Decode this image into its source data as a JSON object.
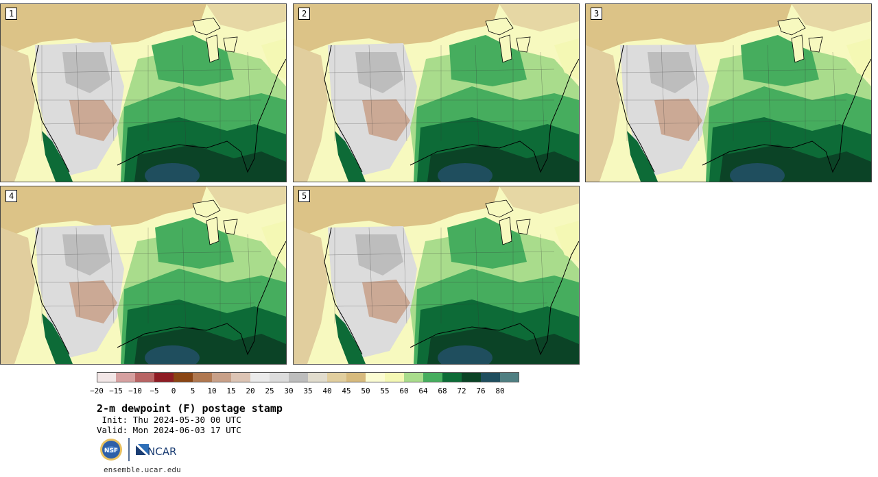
{
  "figure": {
    "title": "2-m dewpoint (F) postage stamp",
    "init": " Init: Thu 2024-05-30 00 UTC",
    "valid": "Valid: Mon 2024-06-03 17 UTC",
    "website": "ensemble.ucar.edu",
    "logos": {
      "nsf_text": "NSF",
      "ncar_text": "NCAR"
    }
  },
  "panels": [
    {
      "number": "1"
    },
    {
      "number": "2"
    },
    {
      "number": "3"
    },
    {
      "number": "4"
    },
    {
      "number": "5"
    }
  ],
  "colorbar": {
    "tick_labels": [
      "−20",
      "−15",
      "−10",
      "−5",
      "0",
      "5",
      "10",
      "15",
      "20",
      "25",
      "30",
      "35",
      "40",
      "45",
      "50",
      "55",
      "60",
      "64",
      "68",
      "72",
      "76",
      "80"
    ],
    "colors": [
      "#f2e6e6",
      "#d6a0a0",
      "#b86464",
      "#8e1c24",
      "#8a4514",
      "#b07850",
      "#c8a088",
      "#dcc4b4",
      "#ebebeb",
      "#dcdcdc",
      "#bdbdbd",
      "#e1dccd",
      "#e1ce9e",
      "#d7ba7d",
      "#fbfcd2",
      "#f4f8b4",
      "#a9dc8c",
      "#46ad5e",
      "#0d6b37",
      "#0b4326",
      "#1f4e5e",
      "#4f7f82"
    ]
  }
}
